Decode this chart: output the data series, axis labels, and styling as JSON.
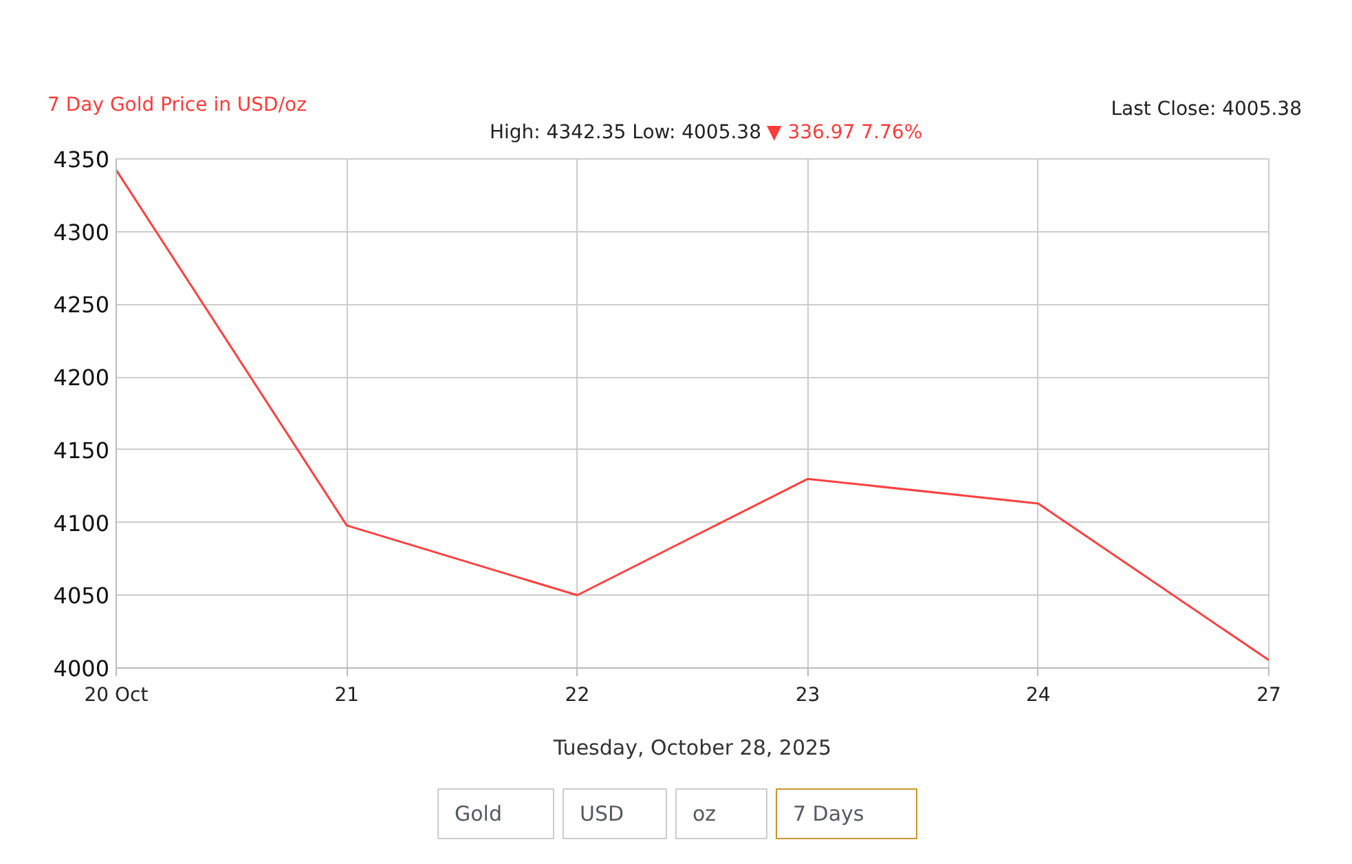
{
  "chart_data": {
    "type": "line",
    "title": "7 Day Gold Price in USD/oz",
    "subtitle": "High: 4342.35 Low: 4005.38",
    "xlabel": "Tuesday, October 28, 2025",
    "annotations": [
      "▼ 336.97 7.76%",
      "Last Close: 4005.38",
      "Gold",
      "USD",
      "oz",
      "7 Days"
    ],
    "categories": [
      "20 Oct",
      "21",
      "22",
      "23",
      "24",
      "27"
    ],
    "series": [
      {
        "color": "#ff4040",
        "values": [
          4342.35,
          4098,
          4050,
          4130,
          4113,
          4005.38
        ]
      }
    ],
    "ylim": [
      4000,
      4350
    ],
    "yticks": [
      4000,
      4050,
      4100,
      4150,
      4200,
      4250,
      4300,
      4350
    ],
    "grid": true,
    "line_style": "solid"
  }
}
